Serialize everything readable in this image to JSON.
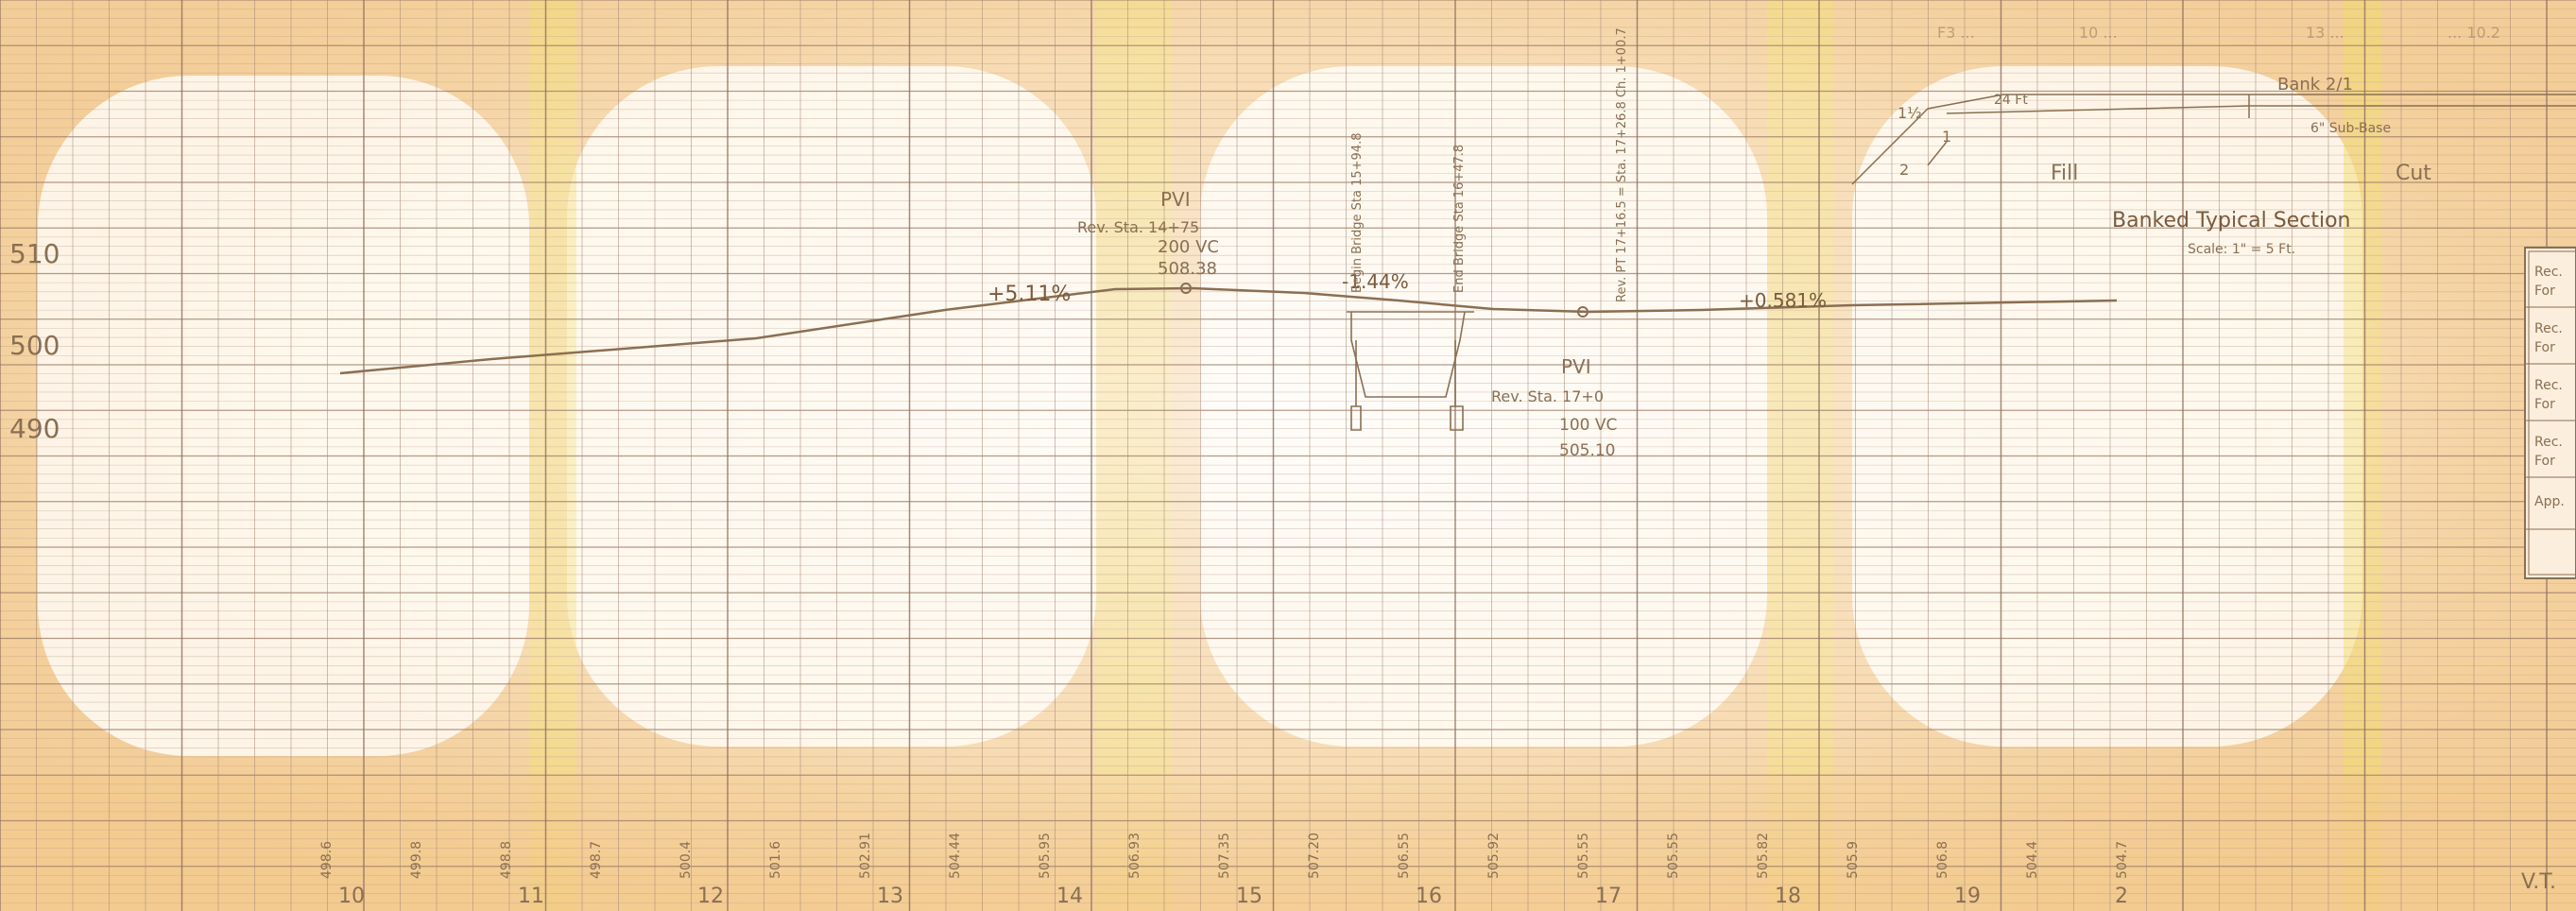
{
  "elevation_labels": [
    "510",
    "500",
    "490"
  ],
  "station_labels": [
    "10",
    "11",
    "12",
    "13",
    "14",
    "15",
    "16",
    "17",
    "18",
    "19",
    "2"
  ],
  "bottom_elevations": [
    "498.6",
    "499.8",
    "498.8",
    "498.7",
    "500.4",
    "501.6",
    "502.91",
    "504.44",
    "505.95",
    "506.93",
    "507.35",
    "507.20",
    "506.55",
    "505.92",
    "505.55",
    "505.55",
    "505.82",
    "505.9",
    "506.8",
    "504.4",
    "504.7"
  ],
  "grades": {
    "left": "+5.11%",
    "middle": "-1.44%",
    "right": "+0.581%"
  },
  "pvi_1": {
    "title": "PVI",
    "station": "Rev. Sta. 14+75",
    "curve": "200 VC",
    "elevation": "508.38"
  },
  "pvi_2": {
    "title": "PVI",
    "station": "Rev. Sta. 17+0",
    "curve": "100 VC",
    "elevation": "505.10"
  },
  "vertical_notes": {
    "bridge_begin": "Begin Bridge Sta 15+94.8",
    "bridge_end": "End Bridge Sta 16+47.8",
    "rev_pt": "Rev. PT 17+16.5 = Sta. 17+26.8 Ch. 1+00.7"
  },
  "typical_section": {
    "title": "Banked Typical Section",
    "scale": "Scale: 1\" = 5 Ft.",
    "bank": "Bank 2/1",
    "subbase": "6\" Sub-Base",
    "fill": "Fill",
    "cut": "Cut",
    "slope_1": "1½",
    "slope_2": "1",
    "slope_3": "2",
    "dimension": "24 Ft"
  },
  "top_faint": [
    "F3 ...",
    "10 ...",
    "13 ...",
    "... 10.2"
  ],
  "right_box_labels": [
    "Rec.",
    "For",
    "Rec.",
    "For",
    "Rec.",
    "For",
    "Rec.",
    "For",
    "App."
  ],
  "corner_text": "V.T."
}
